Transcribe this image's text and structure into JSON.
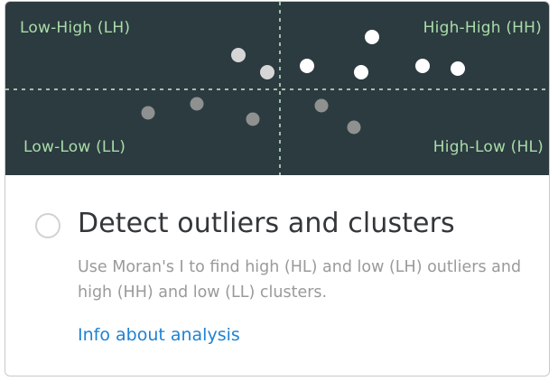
{
  "illustration": {
    "background_color": "#2c3b40",
    "label_color": "#a9dca9",
    "quadrants": {
      "low_high": "Low-High (LH)",
      "high_high": "High-High (HH)",
      "low_low": "Low-Low (LL)",
      "high_low": "High-Low (HL)"
    }
  },
  "option": {
    "title": "Detect outliers and clusters",
    "description": "Use Moran's I to find high (HL) and low (LH) outliers and high (HH) and low (LL) clusters.",
    "link_label": "Info about analysis",
    "link_color": "#1f82d4",
    "selected": false
  }
}
